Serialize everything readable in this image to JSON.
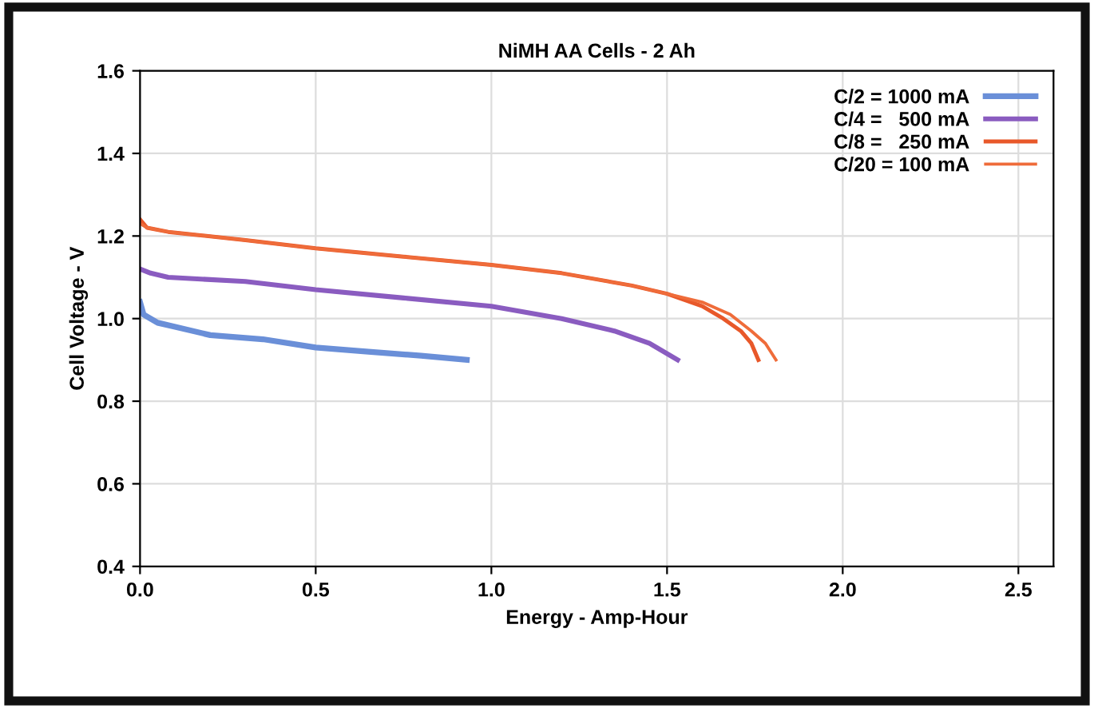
{
  "chart_data": {
    "type": "line",
    "title": "NiMH AA Cells - 2 Ah",
    "xlabel": "Energy - Amp-Hour",
    "ylabel": "Cell Voltage - V",
    "xlim": [
      0,
      2.6
    ],
    "xticks": [
      {
        "value": 0,
        "label": "0.0"
      },
      0.5,
      {
        "value": 1,
        "label": "1.0"
      },
      1.5,
      {
        "value": 2,
        "label": "2.0"
      },
      2.5
    ],
    "ylim": [
      0.4,
      1.6
    ],
    "yticks": [
      0.4,
      0.6,
      0.8,
      {
        "value": 1,
        "label": "1.0"
      },
      1.2,
      1.4,
      1.6
    ],
    "grid": true,
    "legend": "top right",
    "marker": "none",
    "line_style": "solid",
    "series": [
      {
        "name": "C/2 = 1000 mA",
        "color": "#6a8fd8",
        "x": [
          0,
          0.01,
          0.05,
          0.1,
          0.2,
          0.35,
          0.5,
          0.65,
          0.8,
          0.93
        ],
        "values": [
          1.04,
          1.01,
          0.99,
          0.98,
          0.96,
          0.95,
          0.93,
          0.92,
          0.91,
          0.9
        ]
      },
      {
        "name": "C/4 =   500 mA",
        "color": "#8a5cc0",
        "x": [
          0,
          0.03,
          0.08,
          0.3,
          0.5,
          0.75,
          1.0,
          1.2,
          1.35,
          1.45,
          1.53
        ],
        "values": [
          1.12,
          1.11,
          1.1,
          1.09,
          1.07,
          1.05,
          1.03,
          1.0,
          0.97,
          0.94,
          0.9
        ]
      },
      {
        "name": "C/8 =   250 mA",
        "color": "#e8582a",
        "x": [
          0,
          0.02,
          0.08,
          0.3,
          0.5,
          0.75,
          1.0,
          1.2,
          1.4,
          1.5,
          1.6,
          1.66,
          1.71,
          1.74,
          1.76
        ],
        "values": [
          1.24,
          1.22,
          1.21,
          1.19,
          1.17,
          1.15,
          1.13,
          1.11,
          1.08,
          1.06,
          1.03,
          1.0,
          0.97,
          0.94,
          0.9
        ]
      },
      {
        "name": "C/20 = 100 mA",
        "color": "#ef6c3a",
        "x": [
          0,
          0.02,
          0.08,
          0.3,
          0.5,
          0.75,
          1.0,
          1.2,
          1.4,
          1.5,
          1.6,
          1.68,
          1.74,
          1.78,
          1.81
        ],
        "values": [
          1.23,
          1.22,
          1.21,
          1.19,
          1.17,
          1.15,
          1.13,
          1.11,
          1.08,
          1.06,
          1.04,
          1.01,
          0.97,
          0.94,
          0.9
        ]
      }
    ]
  }
}
